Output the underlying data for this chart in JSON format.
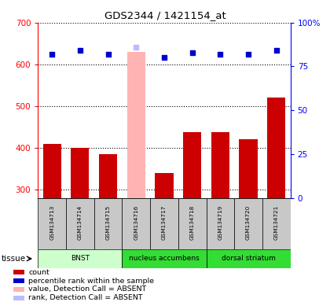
{
  "title": "GDS2344 / 1421154_at",
  "samples": [
    "GSM134713",
    "GSM134714",
    "GSM134715",
    "GSM134716",
    "GSM134717",
    "GSM134718",
    "GSM134719",
    "GSM134720",
    "GSM134721"
  ],
  "bar_values": [
    410,
    400,
    385,
    630,
    340,
    438,
    437,
    420,
    520
  ],
  "bar_absent": [
    false,
    false,
    false,
    true,
    false,
    false,
    false,
    false,
    false
  ],
  "rank_values": [
    82,
    84,
    82,
    86,
    80,
    83,
    82,
    82,
    84
  ],
  "rank_absent": [
    false,
    false,
    false,
    true,
    false,
    false,
    false,
    false,
    false
  ],
  "ylim_left": [
    280,
    700
  ],
  "ylim_right": [
    0,
    100
  ],
  "yticks_left": [
    300,
    400,
    500,
    600,
    700
  ],
  "yticks_right": [
    0,
    25,
    50,
    75,
    100
  ],
  "bar_color_normal": "#CC0000",
  "bar_color_absent": "#FFB3B3",
  "rank_color_normal": "#0000CC",
  "rank_color_absent": "#BBBBFF",
  "tissue_colors": [
    "#CCFFCC",
    "#33DD33",
    "#33DD33"
  ],
  "tissue_groups": [
    {
      "label": "BNST",
      "start": 0,
      "end": 3
    },
    {
      "label": "nucleus accumbens",
      "start": 3,
      "end": 6
    },
    {
      "label": "dorsal striatum",
      "start": 6,
      "end": 9
    }
  ],
  "tissue_label": "tissue",
  "legend_items": [
    {
      "color": "#CC0000",
      "label": "count"
    },
    {
      "color": "#0000CC",
      "label": "percentile rank within the sample"
    },
    {
      "color": "#FFB3B3",
      "label": "value, Detection Call = ABSENT"
    },
    {
      "color": "#BBBBFF",
      "label": "rank, Detection Call = ABSENT"
    }
  ],
  "fig_width": 4.2,
  "fig_height": 3.84,
  "dpi": 100
}
